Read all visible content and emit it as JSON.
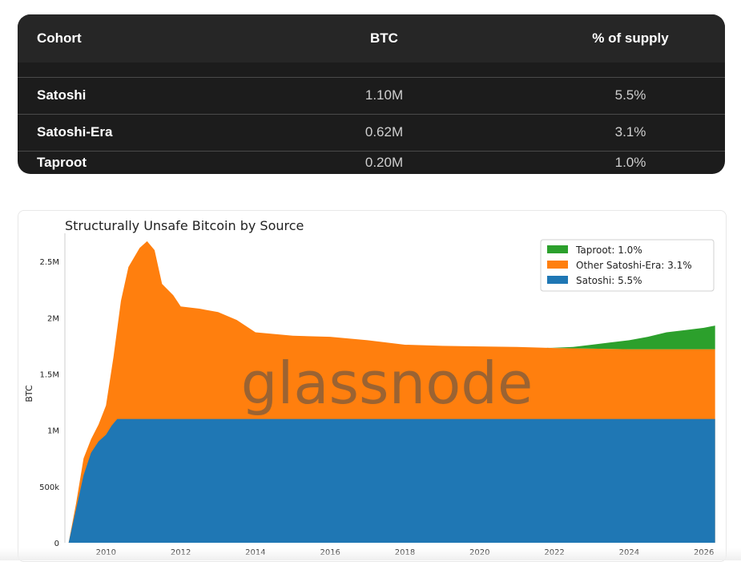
{
  "table": {
    "headers": [
      "Cohort",
      "BTC",
      "% of supply"
    ],
    "rows": [
      {
        "cohort": "Satoshi",
        "btc": "1.10M",
        "supply": "5.5%"
      },
      {
        "cohort": "Satoshi-Era",
        "btc": "0.62M",
        "supply": "3.1%"
      },
      {
        "cohort": "Taproot",
        "btc": "0.20M",
        "supply": "1.0%"
      }
    ]
  },
  "watermark": "glassnode",
  "chart_data": {
    "type": "area",
    "stacked": true,
    "title": "Structurally Unsafe Bitcoin by Source",
    "xlabel": "",
    "ylabel": "BTC",
    "xlim": [
      2008.9,
      2026.35
    ],
    "ylim": [
      0,
      2750000
    ],
    "x_ticks": [
      2010,
      2012,
      2014,
      2016,
      2018,
      2020,
      2022,
      2024,
      2026
    ],
    "x_tick_labels": [
      "2010",
      "2012",
      "2014",
      "2016",
      "2018",
      "2020",
      "2022",
      "2024",
      "2026"
    ],
    "y_ticks": [
      0,
      500000,
      1000000,
      1500000,
      2000000,
      2500000
    ],
    "y_tick_labels": [
      "0",
      "500k",
      "1M",
      "1.5M",
      "2M",
      "2.5M"
    ],
    "grid": false,
    "legend_position": "top-right",
    "legend": [
      {
        "label": "Taproot: 1.0%",
        "color": "#2ca02c"
      },
      {
        "label": "Other Satoshi-Era: 3.1%",
        "color": "#ff7f0e"
      },
      {
        "label": "Satoshi: 5.5%",
        "color": "#1f77b4"
      }
    ],
    "series": [
      {
        "name": "Satoshi: 5.5%",
        "color": "#1f77b4",
        "points": [
          [
            2009.0,
            0
          ],
          [
            2009.2,
            300000
          ],
          [
            2009.4,
            600000
          ],
          [
            2009.6,
            800000
          ],
          [
            2009.8,
            900000
          ],
          [
            2010.0,
            960000
          ],
          [
            2010.15,
            1040000
          ],
          [
            2010.3,
            1100000
          ],
          [
            2012,
            1100000
          ],
          [
            2016,
            1100000
          ],
          [
            2020,
            1100000
          ],
          [
            2024,
            1100000
          ],
          [
            2026.3,
            1100000
          ]
        ]
      },
      {
        "name": "Other Satoshi-Era: 3.1%",
        "color": "#ff7f0e",
        "points": [
          [
            2009.0,
            0
          ],
          [
            2009.2,
            350000
          ],
          [
            2009.4,
            750000
          ],
          [
            2009.6,
            920000
          ],
          [
            2009.8,
            1050000
          ],
          [
            2010.0,
            1220000
          ],
          [
            2010.2,
            1650000
          ],
          [
            2010.4,
            2150000
          ],
          [
            2010.6,
            2450000
          ],
          [
            2010.9,
            2620000
          ],
          [
            2011.1,
            2680000
          ],
          [
            2011.3,
            2600000
          ],
          [
            2011.5,
            2300000
          ],
          [
            2011.8,
            2200000
          ],
          [
            2012.0,
            2100000
          ],
          [
            2012.5,
            2080000
          ],
          [
            2013.0,
            2050000
          ],
          [
            2013.5,
            1980000
          ],
          [
            2014.0,
            1870000
          ],
          [
            2015.0,
            1840000
          ],
          [
            2016.0,
            1830000
          ],
          [
            2017.0,
            1800000
          ],
          [
            2018.0,
            1760000
          ],
          [
            2019.0,
            1750000
          ],
          [
            2020.0,
            1745000
          ],
          [
            2021.0,
            1740000
          ],
          [
            2022.0,
            1730000
          ],
          [
            2023.0,
            1725000
          ],
          [
            2024.0,
            1720000
          ],
          [
            2025.0,
            1720000
          ],
          [
            2026.3,
            1720000
          ]
        ]
      },
      {
        "name": "Taproot: 1.0%",
        "color": "#2ca02c",
        "points": [
          [
            2021.8,
            1730000
          ],
          [
            2022.5,
            1740000
          ],
          [
            2023.0,
            1760000
          ],
          [
            2023.5,
            1780000
          ],
          [
            2024.0,
            1800000
          ],
          [
            2024.5,
            1830000
          ],
          [
            2025.0,
            1870000
          ],
          [
            2025.5,
            1890000
          ],
          [
            2026.0,
            1910000
          ],
          [
            2026.3,
            1930000
          ]
        ]
      }
    ]
  }
}
